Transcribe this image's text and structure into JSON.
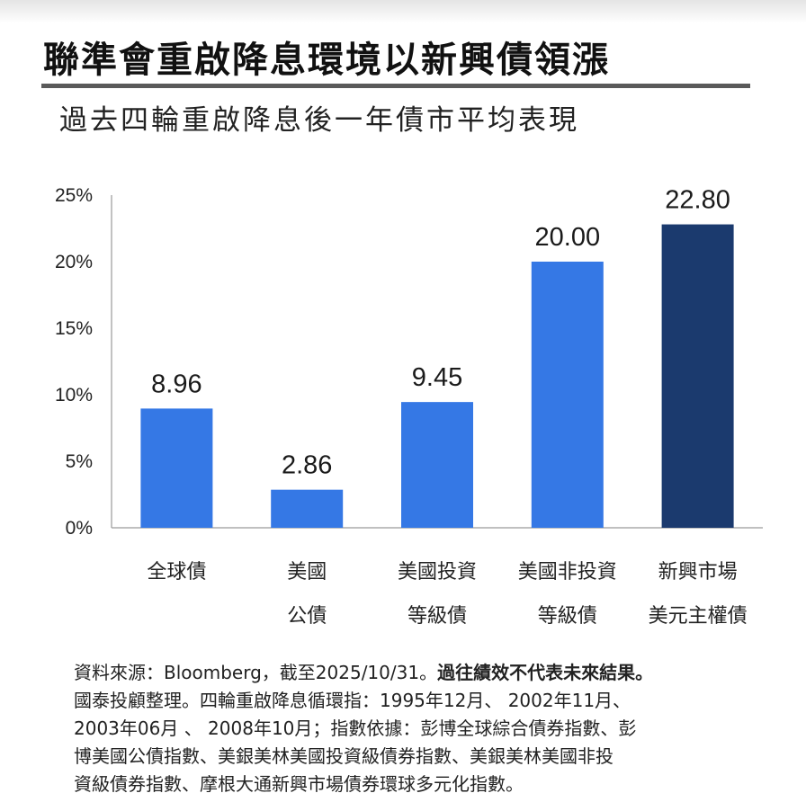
{
  "header": {
    "title": "聯準會重啟降息環境以新興債領漲",
    "subtitle": "過去四輪重啟降息後一年債市平均表現"
  },
  "chart_data": {
    "type": "bar",
    "categories": [
      [
        "全球債"
      ],
      [
        "美國",
        "公債"
      ],
      [
        "美國投資",
        "等級債"
      ],
      [
        "美國非投資",
        "等級債"
      ],
      [
        "新興市場",
        "美元主權債"
      ]
    ],
    "values": [
      8.96,
      2.86,
      9.45,
      20.0,
      22.8
    ],
    "value_labels": [
      "8.96",
      "2.86",
      "9.45",
      "20.00",
      "22.80"
    ],
    "colors": [
      "#3578e5",
      "#3578e5",
      "#3578e5",
      "#3578e5",
      "#1b3a6e"
    ],
    "ylim": [
      0,
      25
    ],
    "yticks": [
      0,
      5,
      10,
      15,
      20,
      25
    ],
    "ytick_labels": [
      "0%",
      "5%",
      "10%",
      "15%",
      "20%",
      "25%"
    ],
    "grid": false
  },
  "footnote": {
    "line1_normal": "資料來源：Bloomberg，截至2025/10/31。",
    "line1_bold": "過往績效不代表未來結果",
    "line1_end": "。",
    "line2": "國泰投顧整理。四輪重啟降息循環指：1995年12月、 2002年11月、",
    "line3": "2003年06月 、 2008年10月；指數依據：彭博全球綜合債券指數、彭",
    "line4": "博美國公債指數、美銀美林美國投資級債券指數、美銀美林美國非投",
    "line5": "資級債券指數、摩根大通新興市場債券環球多元化指數。"
  }
}
